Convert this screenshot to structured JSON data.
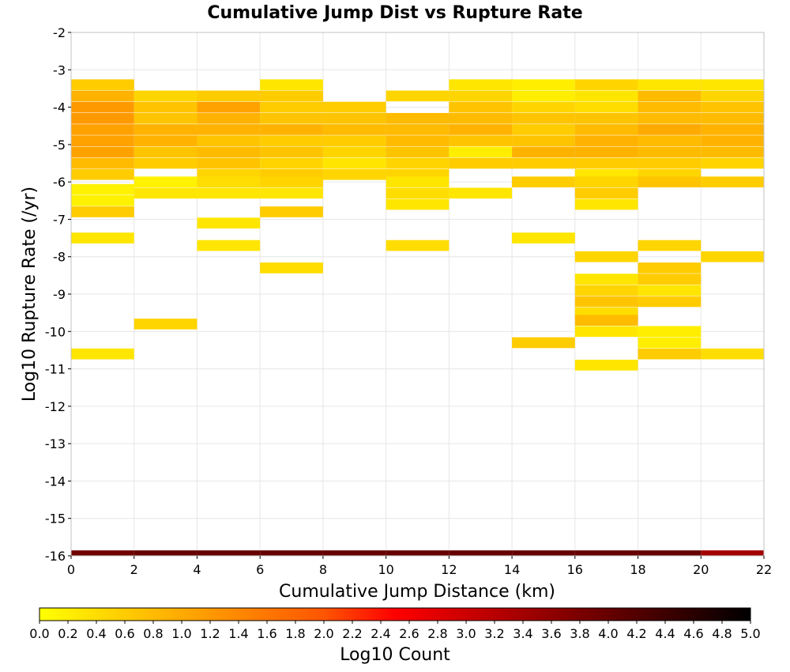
{
  "chart_data": {
    "type": "heatmap",
    "title": "Cumulative Jump Dist vs Rupture Rate",
    "xlabel": "Cumulative Jump Distance (km)",
    "ylabel": "Log10 Rupture Rate (/yr)",
    "xlim": [
      0,
      22
    ],
    "ylim": [
      -16,
      -2
    ],
    "x_ticks": [
      "0",
      "2",
      "4",
      "6",
      "8",
      "10",
      "12",
      "14",
      "16",
      "18",
      "20",
      "22"
    ],
    "y_ticks": [
      "-2",
      "-3",
      "-4",
      "-5",
      "-6",
      "-7",
      "-8",
      "-9",
      "-10",
      "-11",
      "-12",
      "-13",
      "-14",
      "-15",
      "-16"
    ],
    "grid": true,
    "x_bin_width": 2,
    "y_bin_height": 0.289,
    "colorbar": {
      "label": "Log10 Count",
      "min": 0.0,
      "max": 5.0,
      "ticks": [
        "0.0",
        "0.2",
        "0.4",
        "0.6",
        "0.8",
        "1.0",
        "1.2",
        "1.4",
        "1.6",
        "1.8",
        "2.0",
        "2.2",
        "2.4",
        "2.6",
        "2.8",
        "3.0",
        "3.2",
        "3.4",
        "3.6",
        "3.8",
        "4.0",
        "4.2",
        "4.4",
        "4.6",
        "4.8",
        "5.0"
      ]
    },
    "cells": [
      {
        "x": 0,
        "y": -3.4,
        "v": 0.6
      },
      {
        "x": 0,
        "y": -3.7,
        "v": 0.9
      },
      {
        "x": 0,
        "y": -4.0,
        "v": 1.2
      },
      {
        "x": 0,
        "y": -4.3,
        "v": 1.2
      },
      {
        "x": 0,
        "y": -4.6,
        "v": 1.1
      },
      {
        "x": 0,
        "y": -4.9,
        "v": 1.1
      },
      {
        "x": 0,
        "y": -5.2,
        "v": 1.1
      },
      {
        "x": 0,
        "y": -5.5,
        "v": 0.8
      },
      {
        "x": 0,
        "y": -5.8,
        "v": 0.6
      },
      {
        "x": 0,
        "y": -6.2,
        "v": 0.15
      },
      {
        "x": 0,
        "y": -6.5,
        "v": 0.15
      },
      {
        "x": 0,
        "y": -6.8,
        "v": 0.6
      },
      {
        "x": 0,
        "y": -7.5,
        "v": 0.3
      },
      {
        "x": 0,
        "y": -10.6,
        "v": 0.3
      },
      {
        "x": 2,
        "y": -3.7,
        "v": 0.5
      },
      {
        "x": 2,
        "y": -4.0,
        "v": 0.7
      },
      {
        "x": 2,
        "y": -4.3,
        "v": 0.7
      },
      {
        "x": 2,
        "y": -4.6,
        "v": 0.9
      },
      {
        "x": 2,
        "y": -4.9,
        "v": 0.9
      },
      {
        "x": 2,
        "y": -5.2,
        "v": 0.7
      },
      {
        "x": 2,
        "y": -5.5,
        "v": 0.6
      },
      {
        "x": 2,
        "y": -6.0,
        "v": 0.15
      },
      {
        "x": 2,
        "y": -6.3,
        "v": 0.3
      },
      {
        "x": 2,
        "y": -9.8,
        "v": 0.5
      },
      {
        "x": 4,
        "y": -3.7,
        "v": 0.6
      },
      {
        "x": 4,
        "y": -4.0,
        "v": 1.1
      },
      {
        "x": 4,
        "y": -4.3,
        "v": 0.9
      },
      {
        "x": 4,
        "y": -4.6,
        "v": 0.9
      },
      {
        "x": 4,
        "y": -4.9,
        "v": 0.7
      },
      {
        "x": 4,
        "y": -5.2,
        "v": 0.8
      },
      {
        "x": 4,
        "y": -5.5,
        "v": 0.7
      },
      {
        "x": 4,
        "y": -5.8,
        "v": 0.5
      },
      {
        "x": 4,
        "y": -6.0,
        "v": 0.4
      },
      {
        "x": 4,
        "y": -6.3,
        "v": 0.3
      },
      {
        "x": 4,
        "y": -7.1,
        "v": 0.3
      },
      {
        "x": 4,
        "y": -7.7,
        "v": 0.3
      },
      {
        "x": 6,
        "y": -3.4,
        "v": 0.3
      },
      {
        "x": 6,
        "y": -3.7,
        "v": 0.6
      },
      {
        "x": 6,
        "y": -4.0,
        "v": 0.6
      },
      {
        "x": 6,
        "y": -4.3,
        "v": 0.7
      },
      {
        "x": 6,
        "y": -4.6,
        "v": 0.9
      },
      {
        "x": 6,
        "y": -4.9,
        "v": 0.6
      },
      {
        "x": 6,
        "y": -5.2,
        "v": 0.7
      },
      {
        "x": 6,
        "y": -5.5,
        "v": 0.5
      },
      {
        "x": 6,
        "y": -5.8,
        "v": 0.6
      },
      {
        "x": 6,
        "y": -6.0,
        "v": 0.5
      },
      {
        "x": 6,
        "y": -6.3,
        "v": 0.3
      },
      {
        "x": 6,
        "y": -6.8,
        "v": 0.6
      },
      {
        "x": 6,
        "y": -8.3,
        "v": 0.4
      },
      {
        "x": 8,
        "y": -4.0,
        "v": 0.6
      },
      {
        "x": 8,
        "y": -4.3,
        "v": 0.7
      },
      {
        "x": 8,
        "y": -4.6,
        "v": 0.8
      },
      {
        "x": 8,
        "y": -4.9,
        "v": 0.6
      },
      {
        "x": 8,
        "y": -5.2,
        "v": 0.5
      },
      {
        "x": 8,
        "y": -5.5,
        "v": 0.3
      },
      {
        "x": 8,
        "y": -5.8,
        "v": 0.5
      },
      {
        "x": 10,
        "y": -3.7,
        "v": 0.5
      },
      {
        "x": 10,
        "y": -4.3,
        "v": 0.8
      },
      {
        "x": 10,
        "y": -4.6,
        "v": 0.8
      },
      {
        "x": 10,
        "y": -4.9,
        "v": 0.8
      },
      {
        "x": 10,
        "y": -5.2,
        "v": 0.7
      },
      {
        "x": 10,
        "y": -5.5,
        "v": 0.5
      },
      {
        "x": 10,
        "y": -5.8,
        "v": 0.5
      },
      {
        "x": 10,
        "y": -6.0,
        "v": 0.3
      },
      {
        "x": 10,
        "y": -6.3,
        "v": 0.4
      },
      {
        "x": 10,
        "y": -6.6,
        "v": 0.3
      },
      {
        "x": 10,
        "y": -7.7,
        "v": 0.4
      },
      {
        "x": 12,
        "y": -3.4,
        "v": 0.3
      },
      {
        "x": 12,
        "y": -3.7,
        "v": 0.5
      },
      {
        "x": 12,
        "y": -4.0,
        "v": 0.7
      },
      {
        "x": 12,
        "y": -4.3,
        "v": 0.8
      },
      {
        "x": 12,
        "y": -4.6,
        "v": 0.9
      },
      {
        "x": 12,
        "y": -4.9,
        "v": 0.7
      },
      {
        "x": 12,
        "y": -5.2,
        "v": 0.2
      },
      {
        "x": 12,
        "y": -5.5,
        "v": 0.6
      },
      {
        "x": 12,
        "y": -6.3,
        "v": 0.3
      },
      {
        "x": 14,
        "y": -3.4,
        "v": 0.2
      },
      {
        "x": 14,
        "y": -3.7,
        "v": 0.2
      },
      {
        "x": 14,
        "y": -4.0,
        "v": 0.5
      },
      {
        "x": 14,
        "y": -4.3,
        "v": 0.7
      },
      {
        "x": 14,
        "y": -4.6,
        "v": 0.6
      },
      {
        "x": 14,
        "y": -4.9,
        "v": 0.7
      },
      {
        "x": 14,
        "y": -5.2,
        "v": 0.9
      },
      {
        "x": 14,
        "y": -5.5,
        "v": 0.6
      },
      {
        "x": 14,
        "y": -6.0,
        "v": 0.6
      },
      {
        "x": 14,
        "y": -7.5,
        "v": 0.3
      },
      {
        "x": 14,
        "y": -10.3,
        "v": 0.6
      },
      {
        "x": 16,
        "y": -3.4,
        "v": 0.5
      },
      {
        "x": 16,
        "y": -3.7,
        "v": 0.3
      },
      {
        "x": 16,
        "y": -4.0,
        "v": 0.4
      },
      {
        "x": 16,
        "y": -4.3,
        "v": 0.7
      },
      {
        "x": 16,
        "y": -4.6,
        "v": 0.8
      },
      {
        "x": 16,
        "y": -4.9,
        "v": 0.9
      },
      {
        "x": 16,
        "y": -5.2,
        "v": 0.9
      },
      {
        "x": 16,
        "y": -5.5,
        "v": 0.6
      },
      {
        "x": 16,
        "y": -5.8,
        "v": 0.3
      },
      {
        "x": 16,
        "y": -6.0,
        "v": 0.5
      },
      {
        "x": 16,
        "y": -6.3,
        "v": 0.6
      },
      {
        "x": 16,
        "y": -6.6,
        "v": 0.3
      },
      {
        "x": 16,
        "y": -8.0,
        "v": 0.5
      },
      {
        "x": 16,
        "y": -8.6,
        "v": 0.3
      },
      {
        "x": 16,
        "y": -8.9,
        "v": 0.5
      },
      {
        "x": 16,
        "y": -9.2,
        "v": 0.7
      },
      {
        "x": 16,
        "y": -9.5,
        "v": 0.4
      },
      {
        "x": 16,
        "y": -9.7,
        "v": 0.8
      },
      {
        "x": 16,
        "y": -10.0,
        "v": 0.3
      },
      {
        "x": 16,
        "y": -10.9,
        "v": 0.3
      },
      {
        "x": 18,
        "y": -3.4,
        "v": 0.3
      },
      {
        "x": 18,
        "y": -3.7,
        "v": 0.8
      },
      {
        "x": 18,
        "y": -4.0,
        "v": 0.8
      },
      {
        "x": 18,
        "y": -4.3,
        "v": 0.8
      },
      {
        "x": 18,
        "y": -4.6,
        "v": 1.0
      },
      {
        "x": 18,
        "y": -4.9,
        "v": 0.8
      },
      {
        "x": 18,
        "y": -5.2,
        "v": 0.8
      },
      {
        "x": 18,
        "y": -5.5,
        "v": 0.6
      },
      {
        "x": 18,
        "y": -5.8,
        "v": 0.5
      },
      {
        "x": 18,
        "y": -6.0,
        "v": 0.7
      },
      {
        "x": 18,
        "y": -7.7,
        "v": 0.5
      },
      {
        "x": 18,
        "y": -8.3,
        "v": 0.6
      },
      {
        "x": 18,
        "y": -8.6,
        "v": 0.6
      },
      {
        "x": 18,
        "y": -8.9,
        "v": 0.3
      },
      {
        "x": 18,
        "y": -9.2,
        "v": 0.6
      },
      {
        "x": 18,
        "y": -10.0,
        "v": 0.2
      },
      {
        "x": 18,
        "y": -10.3,
        "v": 0.2
      },
      {
        "x": 18,
        "y": -10.6,
        "v": 0.6
      },
      {
        "x": 20,
        "y": -3.4,
        "v": 0.3
      },
      {
        "x": 20,
        "y": -3.7,
        "v": 0.5
      },
      {
        "x": 20,
        "y": -4.0,
        "v": 0.7
      },
      {
        "x": 20,
        "y": -4.3,
        "v": 0.8
      },
      {
        "x": 20,
        "y": -4.6,
        "v": 0.9
      },
      {
        "x": 20,
        "y": -4.9,
        "v": 0.9
      },
      {
        "x": 20,
        "y": -5.2,
        "v": 0.8
      },
      {
        "x": 20,
        "y": -5.5,
        "v": 0.5
      },
      {
        "x": 20,
        "y": -6.0,
        "v": 0.6
      },
      {
        "x": 20,
        "y": -8.0,
        "v": 0.5
      },
      {
        "x": 20,
        "y": -10.6,
        "v": 0.4
      }
    ],
    "bottom_row": {
      "y": -16,
      "values": [
        3.9,
        4.0,
        4.0,
        4.0,
        4.0,
        4.0,
        4.0,
        4.0,
        4.0,
        4.0,
        3.4
      ]
    }
  }
}
